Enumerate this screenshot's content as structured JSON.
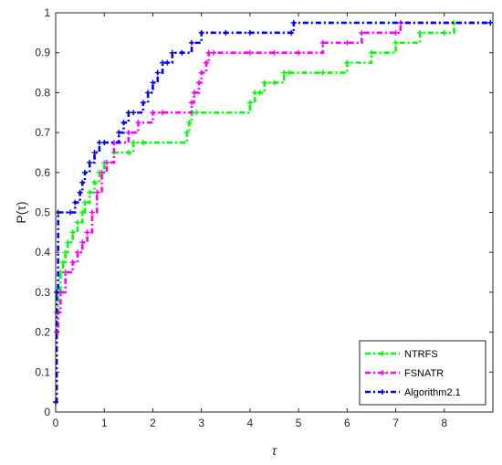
{
  "chart_data": {
    "type": "line",
    "title": "",
    "xlabel": "τ",
    "ylabel": "P(τ)",
    "xlim": [
      0,
      9
    ],
    "ylim": [
      0,
      1
    ],
    "xticks": [
      "0",
      "1",
      "2",
      "3",
      "4",
      "5",
      "6",
      "7",
      "8"
    ],
    "yticks": [
      "0",
      "0.1",
      "0.2",
      "0.3",
      "0.4",
      "0.5",
      "0.6",
      "0.7",
      "0.8",
      "0.9",
      "1"
    ],
    "grid": false,
    "legend_position": "bottom-right",
    "series": [
      {
        "name": "NTRFS",
        "color": "#00ff00",
        "style": "dash-dot",
        "marker": "plus",
        "x": [
          0,
          0.02,
          0.05,
          0.1,
          0.15,
          0.2,
          0.25,
          0.35,
          0.45,
          0.55,
          0.6,
          0.7,
          0.8,
          0.9,
          1.0,
          1.2,
          1.5,
          1.6,
          1.8,
          2.7,
          2.75,
          2.8,
          2.9,
          4.0,
          4.1,
          4.2,
          4.3,
          4.5,
          4.7,
          4.8,
          5.5,
          6.0,
          6.5,
          7.0,
          7.5,
          8.0,
          8.2,
          8.95
        ],
        "y": [
          0.025,
          0.25,
          0.3,
          0.35,
          0.375,
          0.4,
          0.425,
          0.45,
          0.475,
          0.5,
          0.525,
          0.55,
          0.575,
          0.6,
          0.625,
          0.65,
          0.65,
          0.675,
          0.675,
          0.7,
          0.725,
          0.75,
          0.75,
          0.775,
          0.8,
          0.8,
          0.825,
          0.825,
          0.85,
          0.85,
          0.85,
          0.875,
          0.9,
          0.925,
          0.95,
          0.95,
          0.975,
          0.975
        ]
      },
      {
        "name": "FSNATR",
        "color": "#ff00ff",
        "style": "dash-dot",
        "marker": "plus",
        "x": [
          0,
          0.02,
          0.05,
          0.1,
          0.2,
          0.35,
          0.45,
          0.55,
          0.65,
          0.75,
          0.85,
          0.95,
          1.05,
          1.2,
          1.5,
          1.7,
          2.0,
          2.2,
          2.8,
          2.85,
          2.95,
          3.0,
          3.1,
          3.15,
          3.25,
          4.0,
          4.5,
          5.0,
          5.5,
          6.0,
          6.3,
          7.0,
          7.1,
          8.95
        ],
        "y": [
          0.025,
          0.2,
          0.25,
          0.3,
          0.35,
          0.375,
          0.4,
          0.425,
          0.45,
          0.5,
          0.55,
          0.6,
          0.625,
          0.675,
          0.7,
          0.725,
          0.75,
          0.75,
          0.775,
          0.8,
          0.825,
          0.85,
          0.875,
          0.9,
          0.9,
          0.9,
          0.9,
          0.9,
          0.925,
          0.925,
          0.95,
          0.95,
          0.975,
          0.975
        ]
      },
      {
        "name": "Algorithm2.1",
        "color": "#0000ff",
        "style": "dash-dot",
        "marker": "plus",
        "x": [
          0,
          0.02,
          0.05,
          0.3,
          0.4,
          0.5,
          0.55,
          0.6,
          0.7,
          0.8,
          0.9,
          1.0,
          1.3,
          1.4,
          1.5,
          1.6,
          1.8,
          1.9,
          2.0,
          2.1,
          2.2,
          2.3,
          2.4,
          2.6,
          2.8,
          3.0,
          3.5,
          4.0,
          4.85,
          4.9,
          8.95
        ],
        "y": [
          0.025,
          0.3,
          0.5,
          0.5,
          0.525,
          0.55,
          0.575,
          0.6,
          0.625,
          0.65,
          0.675,
          0.675,
          0.7,
          0.725,
          0.75,
          0.75,
          0.775,
          0.8,
          0.825,
          0.85,
          0.875,
          0.875,
          0.9,
          0.9,
          0.925,
          0.95,
          0.95,
          0.95,
          0.95,
          0.975,
          0.975
        ]
      }
    ]
  }
}
